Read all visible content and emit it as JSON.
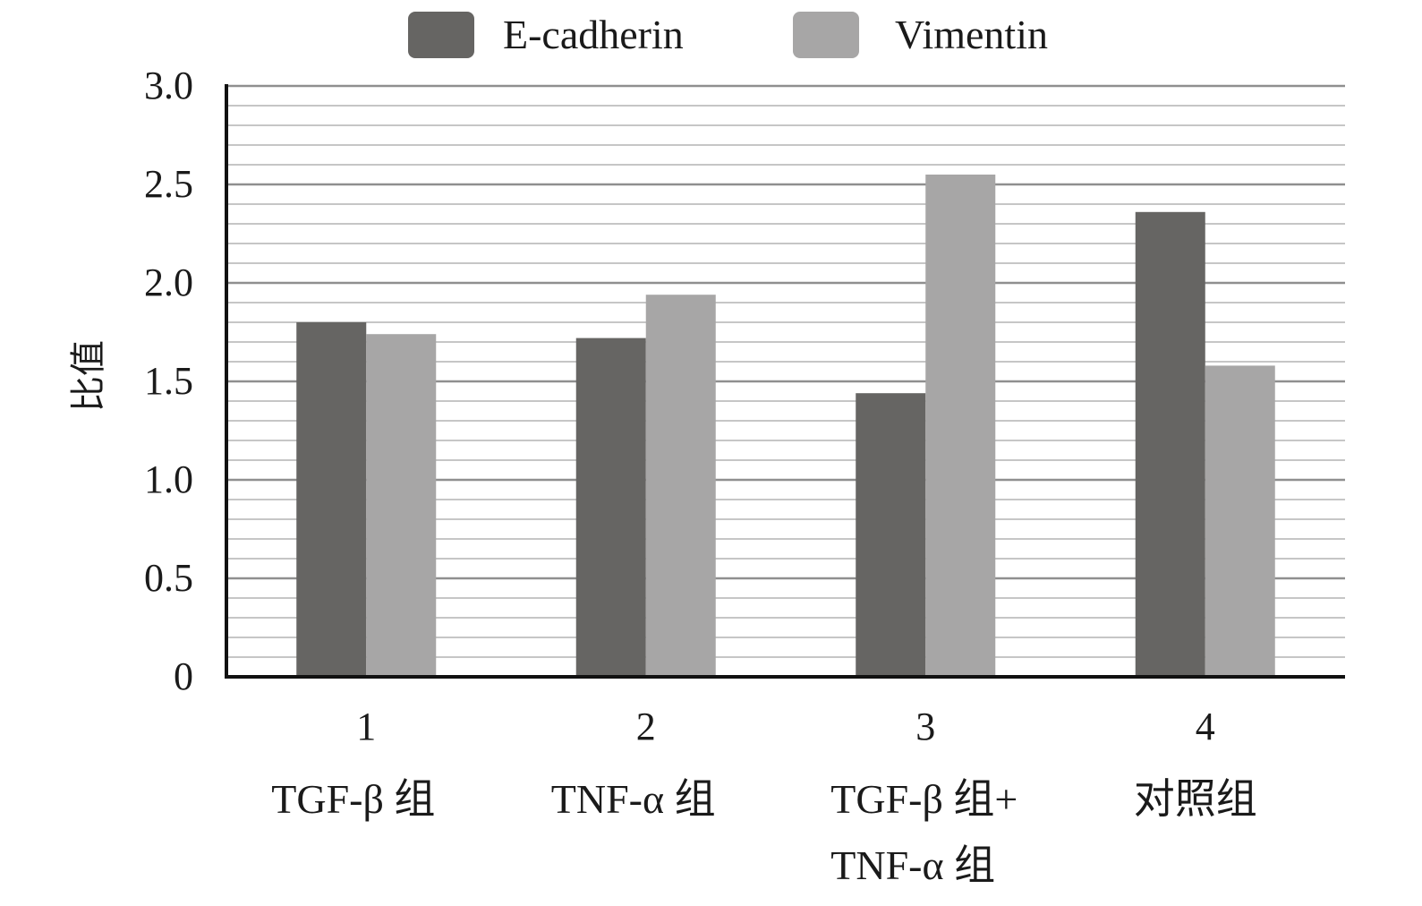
{
  "chart_data": {
    "type": "bar",
    "categories": [
      {
        "number": "1",
        "label_lines": [
          "TGF-β 组"
        ]
      },
      {
        "number": "2",
        "label_lines": [
          "TNF-α 组"
        ]
      },
      {
        "number": "3",
        "label_lines": [
          "TGF-β 组+",
          "TNF-α 组"
        ]
      },
      {
        "number": "4",
        "label_lines": [
          "对照组"
        ]
      }
    ],
    "series": [
      {
        "name": "E-cadherin",
        "color": "#666563",
        "values": [
          1.8,
          1.72,
          1.44,
          2.36
        ]
      },
      {
        "name": "Vimentin",
        "color": "#a7a6a6",
        "values": [
          1.74,
          1.94,
          2.55,
          1.58
        ]
      }
    ],
    "ylabel": "比值",
    "ylim": [
      0,
      3.0
    ],
    "yticks": [
      "0",
      "0.5",
      "1.0",
      "1.5",
      "2.0",
      "2.5",
      "3.0"
    ],
    "grid": true,
    "minor_grid_step": 0.1,
    "legend_position": "top-center"
  }
}
